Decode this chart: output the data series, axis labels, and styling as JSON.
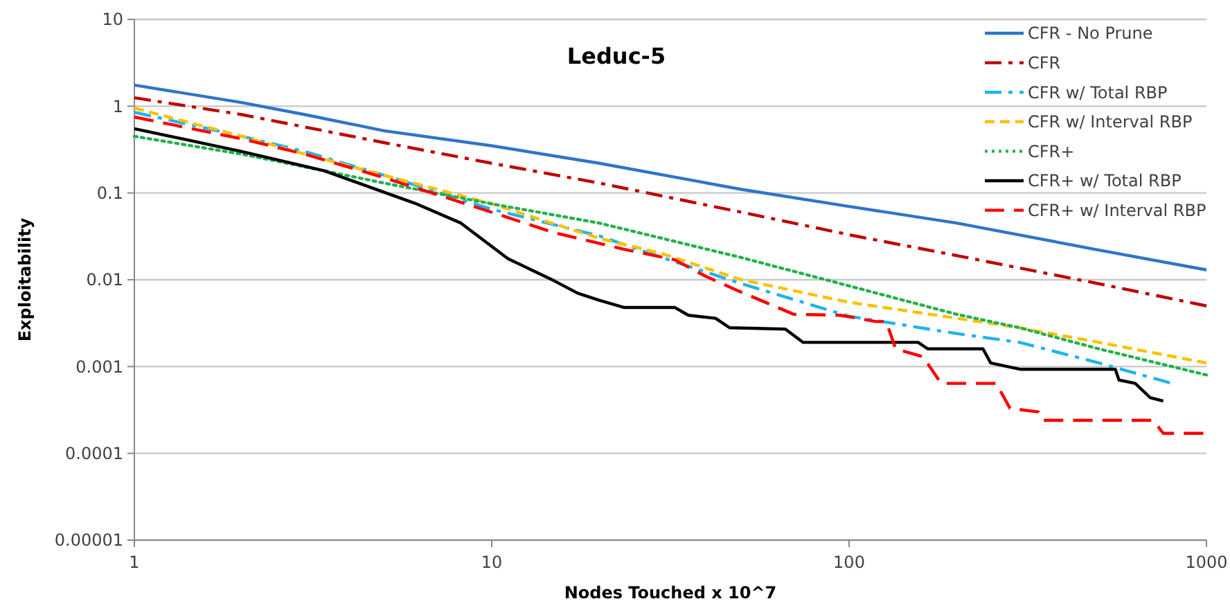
{
  "chart_data": {
    "type": "line",
    "title": "Leduc-5",
    "xlabel": "Nodes Touched x 10^7",
    "ylabel": "Exploitability",
    "log": "xy",
    "grid": "y",
    "legend": "top right",
    "xlim": [
      1,
      1000
    ],
    "xticks": [
      1,
      10,
      100,
      1000
    ],
    "ylim": [
      1e-05,
      10
    ],
    "yticks": [
      {
        "value": 10,
        "label": "10"
      },
      {
        "value": 1,
        "label": "1"
      },
      {
        "value": 0.1,
        "label": "0.1"
      },
      {
        "value": 0.01,
        "label": "0.01"
      },
      {
        "value": 0.001,
        "label": "0.001"
      },
      {
        "value": 0.0001,
        "label": "0.0001"
      },
      {
        "value": 1e-05,
        "label": "0.00001"
      }
    ],
    "series": [
      {
        "name": "CFR - No Prune",
        "color": "#2e75c8",
        "line_style": "solid",
        "x": [
          1,
          2,
          3,
          5,
          10,
          20,
          50,
          100,
          200,
          500,
          1000
        ],
        "values": [
          1.75,
          1.1,
          0.8,
          0.52,
          0.35,
          0.22,
          0.11,
          0.07,
          0.045,
          0.022,
          0.013
        ]
      },
      {
        "name": "CFR",
        "color": "#c00000",
        "line_style": "dashdot",
        "x": [
          1,
          2,
          5,
          10,
          20,
          50,
          100,
          200,
          500,
          1000
        ],
        "values": [
          1.25,
          0.8,
          0.38,
          0.22,
          0.13,
          0.06,
          0.033,
          0.019,
          0.009,
          0.005
        ]
      },
      {
        "name": "CFR w/ Total RBP",
        "color": "#1eb4f0",
        "line_style": "dashdot",
        "x": [
          1,
          2,
          3,
          5,
          10,
          20,
          30,
          50,
          100,
          200,
          300,
          500,
          790
        ],
        "values": [
          0.85,
          0.45,
          0.3,
          0.16,
          0.065,
          0.032,
          0.018,
          0.009,
          0.0038,
          0.0024,
          0.0019,
          0.0011,
          0.00065
        ]
      },
      {
        "name": "CFR w/ Interval RBP",
        "color": "#ffc000",
        "line_style": "dashed",
        "x": [
          1,
          2,
          3,
          5,
          10,
          20,
          30,
          50,
          100,
          200,
          300,
          500,
          1000
        ],
        "values": [
          0.95,
          0.45,
          0.28,
          0.16,
          0.075,
          0.03,
          0.02,
          0.01,
          0.0055,
          0.0036,
          0.0028,
          0.0019,
          0.0011
        ]
      },
      {
        "name": "CFR+",
        "color": "#22b14c",
        "line_style": "dotted",
        "x": [
          1,
          2,
          3,
          5,
          10,
          20,
          50,
          100,
          200,
          300,
          500,
          1000
        ],
        "values": [
          0.45,
          0.28,
          0.2,
          0.13,
          0.075,
          0.045,
          0.018,
          0.0085,
          0.004,
          0.0028,
          0.0016,
          0.0008
        ]
      },
      {
        "name": "CFR+ w/ Total RBP",
        "color": "#000000",
        "line_style": "solid",
        "x": [
          1,
          2,
          3.4,
          6.1,
          8.2,
          11.1,
          14.9,
          17.4,
          20,
          23.4,
          32.5,
          35.5,
          42.3,
          46.3,
          66.3,
          74.4,
          156,
          166,
          237,
          249,
          302,
          556,
          569,
          632,
          695,
          757
        ],
        "values": [
          0.55,
          0.3,
          0.18,
          0.076,
          0.045,
          0.0175,
          0.0098,
          0.007,
          0.0058,
          0.0048,
          0.0048,
          0.0039,
          0.0036,
          0.0028,
          0.0027,
          0.0019,
          0.0019,
          0.0016,
          0.0016,
          0.0011,
          0.00093,
          0.00093,
          0.0007,
          0.00064,
          0.00044,
          0.0004
        ]
      },
      {
        "name": "CFR+ w/ Interval RBP",
        "color": "#ff0000",
        "line_style": "longdash",
        "x": [
          1,
          2,
          3,
          5,
          10,
          14.9,
          23.4,
          32.5,
          39.6,
          48.8,
          70,
          94.5,
          119,
          127,
          135,
          161,
          181,
          258,
          282,
          339,
          349,
          710,
          757,
          980
        ],
        "values": [
          0.75,
          0.42,
          0.28,
          0.15,
          0.06,
          0.035,
          0.0225,
          0.017,
          0.011,
          0.0075,
          0.004,
          0.0039,
          0.0033,
          0.0033,
          0.0016,
          0.0013,
          0.00064,
          0.00064,
          0.00033,
          0.0003,
          0.00024,
          0.00024,
          0.00017,
          0.00017
        ]
      }
    ]
  }
}
